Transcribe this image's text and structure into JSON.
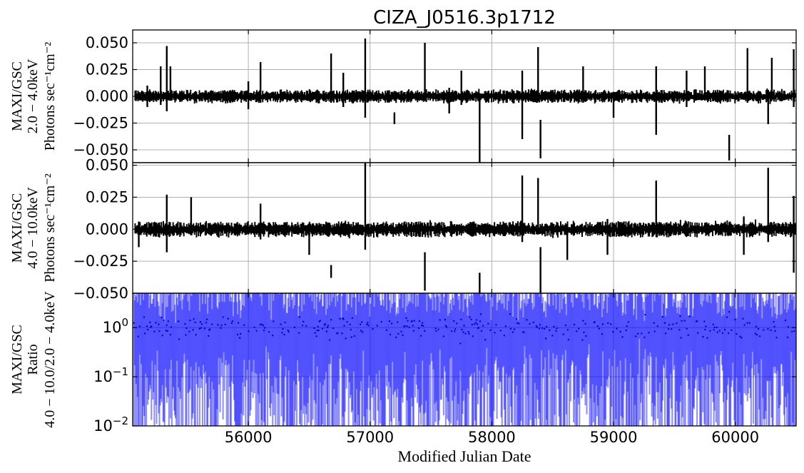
{
  "title": "CIZA_J0516.3p1712",
  "xlabel": "Modified Julian Date",
  "x_range": [
    55050,
    60500
  ],
  "x_ticks": [
    "56000",
    "57000",
    "58000",
    "59000",
    "60000"
  ],
  "chart_data": [
    {
      "type": "line",
      "name": "2.0-4.0keV",
      "ylabel_lines": [
        "MAXI/GSC",
        "2.0 − 4.0keV",
        "Photons sec⁻¹cm⁻²"
      ],
      "ylim": [
        -0.062,
        0.062
      ],
      "y_ticks": [
        "0.050",
        "0.025",
        "0.000",
        "−0.025",
        "−0.050"
      ],
      "grid": true,
      "color": "#000000",
      "spikes": [
        [
          55170,
          -0.01,
          0.01
        ],
        [
          55280,
          -0.008,
          0.028
        ],
        [
          55330,
          -0.014,
          0.047
        ],
        [
          55360,
          -0.004,
          0.028
        ],
        [
          56000,
          -0.012,
          0.014
        ],
        [
          56100,
          -0.006,
          0.032
        ],
        [
          56680,
          -0.006,
          0.04
        ],
        [
          56780,
          -0.01,
          0.022
        ],
        [
          56960,
          -0.02,
          0.054
        ],
        [
          57200,
          -0.026,
          -0.015
        ],
        [
          57450,
          -0.004,
          0.05
        ],
        [
          57650,
          -0.016,
          0.008
        ],
        [
          57750,
          -0.008,
          0.024
        ],
        [
          57900,
          -0.065,
          0.0
        ],
        [
          58250,
          -0.04,
          0.024
        ],
        [
          58400,
          -0.058,
          -0.022
        ],
        [
          58380,
          -0.004,
          0.046
        ],
        [
          58750,
          -0.006,
          0.028
        ],
        [
          59000,
          -0.02,
          0.004
        ],
        [
          59350,
          -0.036,
          0.028
        ],
        [
          59600,
          -0.01,
          0.024
        ],
        [
          59750,
          -0.004,
          0.028
        ],
        [
          59950,
          -0.06,
          -0.036
        ],
        [
          60100,
          -0.006,
          0.045
        ],
        [
          60270,
          -0.026,
          0.006
        ],
        [
          60300,
          -0.004,
          0.036
        ],
        [
          60480,
          -0.01,
          0.044
        ]
      ]
    },
    {
      "type": "line",
      "name": "4.0-10.0keV",
      "ylabel_lines": [
        "MAXI/GSC",
        "4.0 − 10.0keV",
        "Photons sec⁻¹cm⁻²"
      ],
      "ylim": [
        -0.05,
        0.052
      ],
      "y_ticks": [
        "0.050",
        "0.025",
        "0.000",
        "−0.025",
        "−0.050"
      ],
      "grid": true,
      "color": "#000000",
      "spikes": [
        [
          55100,
          -0.014,
          0.006
        ],
        [
          55330,
          -0.018,
          0.027
        ],
        [
          55530,
          -0.004,
          0.025
        ],
        [
          56100,
          -0.008,
          0.02
        ],
        [
          56500,
          -0.02,
          0.004
        ],
        [
          56680,
          -0.038,
          -0.028
        ],
        [
          56960,
          -0.016,
          0.052
        ],
        [
          57450,
          -0.048,
          -0.018
        ],
        [
          57900,
          -0.05,
          -0.034
        ],
        [
          58250,
          -0.01,
          0.042
        ],
        [
          58400,
          -0.05,
          -0.014
        ],
        [
          58380,
          -0.004,
          0.04
        ],
        [
          58620,
          -0.024,
          0.004
        ],
        [
          58950,
          -0.02,
          0.008
        ],
        [
          59350,
          -0.004,
          0.038
        ],
        [
          60070,
          -0.02,
          0.01
        ],
        [
          60270,
          -0.01,
          0.048
        ],
        [
          60480,
          -0.034,
          0.026
        ]
      ]
    },
    {
      "type": "scatter",
      "name": "Ratio",
      "ylabel_lines": [
        "MAXI/GSC",
        "Ratio",
        "4.0 − 10.0/2.0 − 4.0keV"
      ],
      "y_scale": "log",
      "ylim": [
        0.01,
        5
      ],
      "y_ticks": [
        {
          "base": "10",
          "exp": "0",
          "value": 1
        },
        {
          "base": "10",
          "exp": "−1",
          "value": 0.1
        },
        {
          "base": "10",
          "exp": "−2",
          "value": 0.01
        }
      ],
      "grid": true,
      "color": "#0000ff"
    }
  ]
}
